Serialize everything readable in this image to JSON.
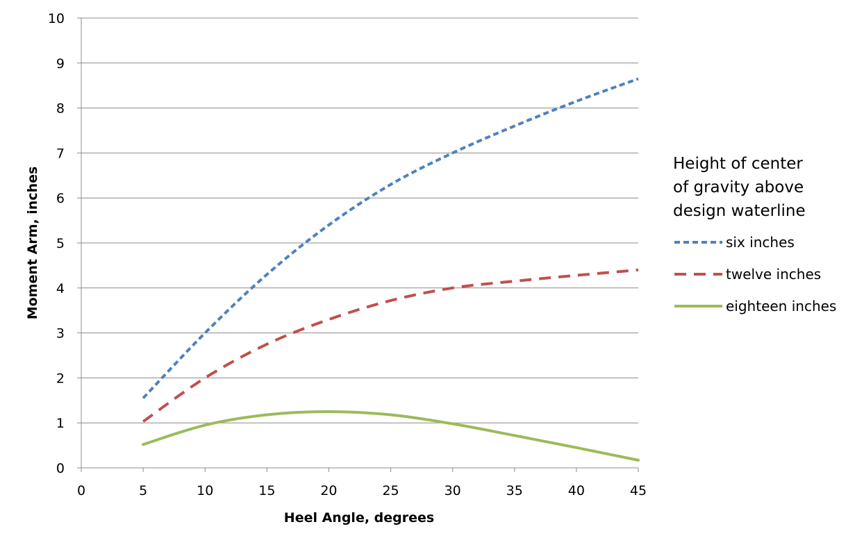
{
  "chart_data": {
    "type": "line",
    "xlabel": "Heel Angle, degrees",
    "ylabel": "Moment Arm, inches",
    "xlim": [
      0,
      45
    ],
    "ylim": [
      0,
      10
    ],
    "x_ticks": [
      "0",
      "5",
      "10",
      "15",
      "20",
      "25",
      "30",
      "35",
      "40",
      "45"
    ],
    "y_ticks": [
      "0",
      "1",
      "2",
      "3",
      "4",
      "5",
      "6",
      "7",
      "8",
      "9",
      "10"
    ],
    "grid": "horizontal",
    "legend": {
      "placement": "right",
      "title_lines": [
        "Height of center",
        "of gravity above",
        "design waterline"
      ]
    },
    "x": [
      5,
      10,
      15,
      20,
      25,
      30,
      35,
      40,
      45
    ],
    "series": [
      {
        "name": "six inches",
        "color": "#4F81BD",
        "style": "dotted",
        "values": [
          1.55,
          3.0,
          4.3,
          5.4,
          6.3,
          7.0,
          7.6,
          8.15,
          8.65
        ]
      },
      {
        "name": "twelve inches",
        "color": "#C0504D",
        "style": "dashed",
        "values": [
          1.03,
          2.0,
          2.75,
          3.3,
          3.72,
          4.0,
          4.15,
          4.28,
          4.4
        ]
      },
      {
        "name": "eighteen inches",
        "color": "#9BBB59",
        "style": "solid",
        "values": [
          0.52,
          0.95,
          1.18,
          1.25,
          1.18,
          0.98,
          0.72,
          0.45,
          0.17
        ]
      }
    ]
  }
}
